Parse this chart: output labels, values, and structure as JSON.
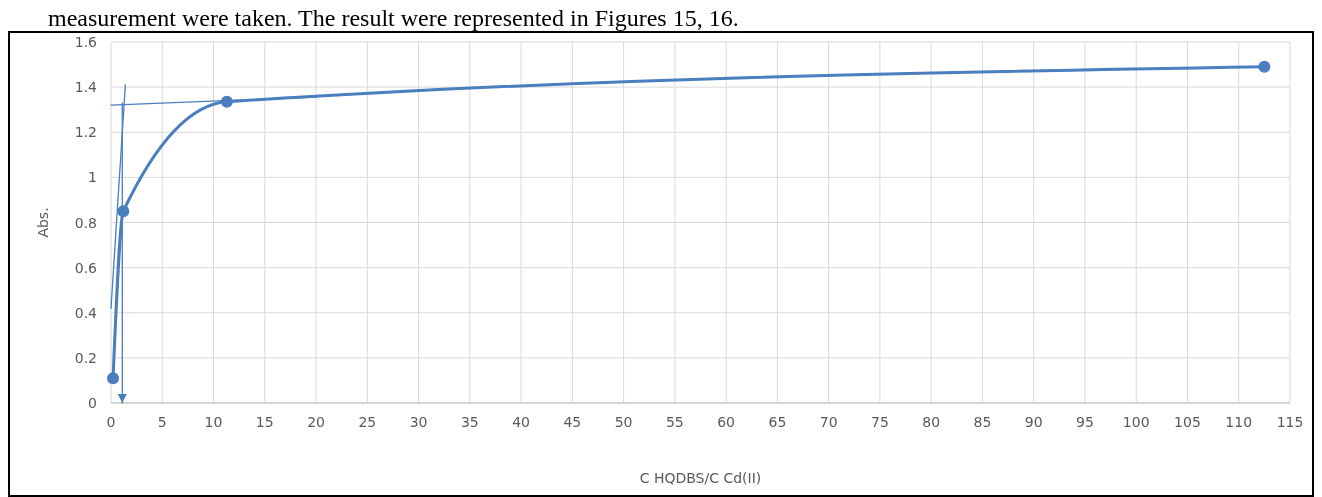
{
  "chart_data": {
    "type": "line",
    "xlabel": "C HQDBS/C Cd(II)",
    "ylabel": "Abs.",
    "annotations": [
      "measurement were taken. The result were represented in Figures 15, 16."
    ],
    "xlim": [
      0,
      115
    ],
    "ylim": [
      0,
      1.6
    ],
    "xticks": [
      0,
      5,
      10,
      15,
      20,
      25,
      30,
      35,
      40,
      45,
      50,
      55,
      60,
      65,
      70,
      75,
      80,
      85,
      90,
      95,
      100,
      105,
      110,
      115
    ],
    "yticks": [
      0,
      0.2,
      0.4,
      0.6,
      0.8,
      {
        "value": 1,
        "label": "1"
      },
      1.2,
      1.4,
      1.6
    ],
    "grid": true,
    "series": [
      {
        "color": "#4a7ebf",
        "marker": "circle",
        "x": [
          0.2,
          1.2,
          11.3,
          112.5
        ],
        "values": [
          0.11,
          0.85,
          1.335,
          1.49
        ]
      },
      {
        "color": "#4a7ebf",
        "marker": "none",
        "x": [
          0,
          1.4
        ],
        "values": [
          0.42,
          1.41
        ]
      },
      {
        "color": "#4a7ebf",
        "marker": "none",
        "x": [
          0,
          20
        ],
        "values": [
          1.32,
          1.356
        ]
      },
      {
        "color": "#4a7ebf",
        "marker": "none",
        "x": [
          1.1,
          1.1
        ],
        "values": [
          1.33,
          0
        ]
      }
    ]
  }
}
